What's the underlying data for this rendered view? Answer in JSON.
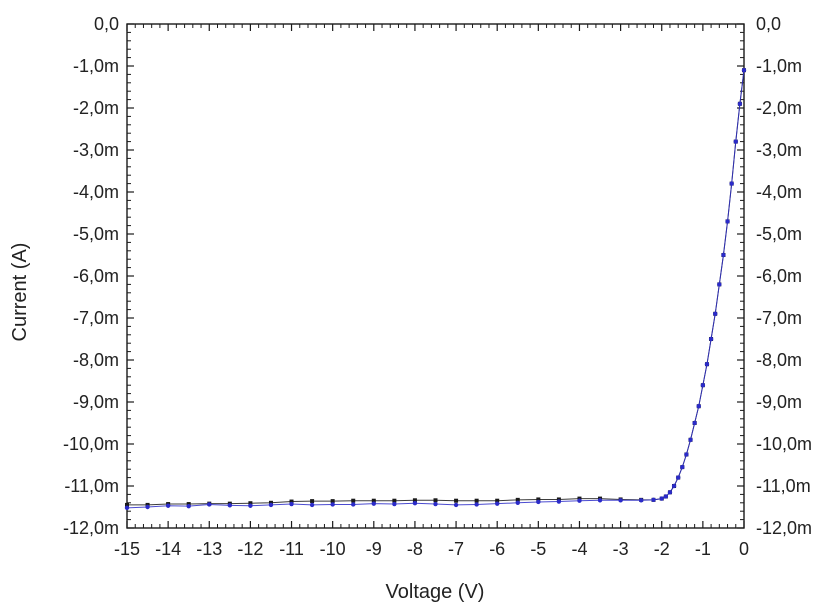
{
  "chart_data": {
    "type": "scatter",
    "title": "",
    "xlabel": "Voltage (V)",
    "ylabel": "Current (A)",
    "xlim": [
      -15,
      0
    ],
    "ylim": [
      -12.0,
      0.0
    ],
    "y_unit_scale": "milliampere",
    "x_ticks": [
      -15,
      -14,
      -13,
      -12,
      -11,
      -10,
      -9,
      -8,
      -7,
      -6,
      -5,
      -4,
      -3,
      -2,
      -1,
      0
    ],
    "x_tick_labels": [
      "-15",
      "-14",
      "-13",
      "-12",
      "-11",
      "-10",
      "-9",
      "-8",
      "-7",
      "-6",
      "-5",
      "-4",
      "-3",
      "-2",
      "-1",
      "0"
    ],
    "y_ticks": [
      0,
      -1,
      -2,
      -3,
      -4,
      -5,
      -6,
      -7,
      -8,
      -9,
      -10,
      -11,
      -12
    ],
    "y_tick_labels": [
      "0,0",
      "-1,0m",
      "-2,0m",
      "-3,0m",
      "-4,0m",
      "-5,0m",
      "-6,0m",
      "-7,0m",
      "-8,0m",
      "-9,0m",
      "-10,0m",
      "-11,0m",
      "-12,0m"
    ],
    "right_axis_duplicate": true,
    "grid": false,
    "legend": "none",
    "series": [
      {
        "color": "#1a1a1a",
        "marker": "square",
        "x": [
          -15.0,
          -14.5,
          -14.0,
          -13.5,
          -13.0,
          -12.5,
          -12.0,
          -11.5,
          -11.0,
          -10.5,
          -10.0,
          -9.5,
          -9.0,
          -8.5,
          -8.0,
          -7.5,
          -7.0,
          -6.5,
          -6.0,
          -5.5,
          -5.0,
          -4.5,
          -4.0,
          -3.5,
          -3.0,
          -2.5,
          -2.2,
          -2.0,
          -1.9,
          -1.8,
          -1.7,
          -1.6,
          -1.5,
          -1.4,
          -1.3,
          -1.2,
          -1.1,
          -1.0,
          -0.9,
          -0.8,
          -0.7,
          -0.6,
          -0.5,
          -0.4,
          -0.3,
          -0.2,
          -0.1,
          0.0
        ],
        "y": [
          -11.45,
          -11.45,
          -11.43,
          -11.43,
          -11.42,
          -11.42,
          -11.41,
          -11.4,
          -11.37,
          -11.36,
          -11.36,
          -11.35,
          -11.35,
          -11.35,
          -11.34,
          -11.34,
          -11.35,
          -11.35,
          -11.35,
          -11.33,
          -11.32,
          -11.32,
          -11.3,
          -11.3,
          -11.32,
          -11.33,
          -11.33,
          -11.3,
          -11.25,
          -11.15,
          -11.0,
          -10.8,
          -10.55,
          -10.25,
          -9.9,
          -9.5,
          -9.1,
          -8.6,
          -8.1,
          -7.5,
          -6.9,
          -6.2,
          -5.5,
          -4.7,
          -3.8,
          -2.8,
          -1.9,
          -1.1
        ]
      },
      {
        "color": "#2b2bc8",
        "marker": "dot",
        "x": [
          -15.0,
          -14.5,
          -14.0,
          -13.5,
          -13.0,
          -12.5,
          -12.0,
          -11.5,
          -11.0,
          -10.5,
          -10.0,
          -9.5,
          -9.0,
          -8.5,
          -8.0,
          -7.5,
          -7.0,
          -6.5,
          -6.0,
          -5.5,
          -5.0,
          -4.5,
          -4.0,
          -3.5,
          -3.0,
          -2.5,
          -2.2,
          -2.0,
          -1.9,
          -1.8,
          -1.7,
          -1.6,
          -1.5,
          -1.4,
          -1.3,
          -1.2,
          -1.1,
          -1.0,
          -0.9,
          -0.8,
          -0.7,
          -0.6,
          -0.5,
          -0.4,
          -0.3,
          -0.2,
          -0.1,
          0.0
        ],
        "y": [
          -11.52,
          -11.5,
          -11.47,
          -11.48,
          -11.44,
          -11.46,
          -11.47,
          -11.45,
          -11.43,
          -11.45,
          -11.44,
          -11.44,
          -11.42,
          -11.43,
          -11.41,
          -11.43,
          -11.45,
          -11.44,
          -11.42,
          -11.4,
          -11.38,
          -11.37,
          -11.35,
          -11.34,
          -11.34,
          -11.34,
          -11.33,
          -11.3,
          -11.25,
          -11.15,
          -11.0,
          -10.8,
          -10.55,
          -10.25,
          -9.9,
          -9.5,
          -9.1,
          -8.6,
          -8.1,
          -7.5,
          -6.9,
          -6.2,
          -5.5,
          -4.7,
          -3.8,
          -2.8,
          -1.9,
          -1.1
        ]
      }
    ]
  }
}
